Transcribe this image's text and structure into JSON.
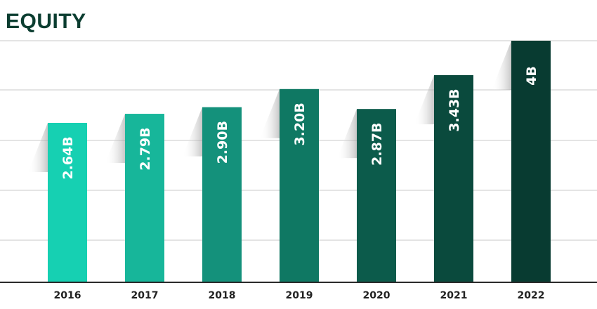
{
  "chart_data": {
    "type": "bar",
    "title": "EQUITY",
    "categories": [
      "2016",
      "2017",
      "2018",
      "2019",
      "2020",
      "2021",
      "2022"
    ],
    "values": [
      2.64,
      2.79,
      2.9,
      3.2,
      2.87,
      3.43,
      4.0
    ],
    "value_labels": [
      "2.64B",
      "2.79B",
      "2.90B",
      "3.20B",
      "2.87B",
      "3.43B",
      "4B"
    ],
    "ylim": [
      0,
      4.0
    ],
    "grid": true,
    "legend": "none",
    "colors": [
      "#16d0b2",
      "#17b69a",
      "#14917b",
      "#0f7863",
      "#0c5b4b",
      "#0a4a3d",
      "#083b31"
    ]
  }
}
